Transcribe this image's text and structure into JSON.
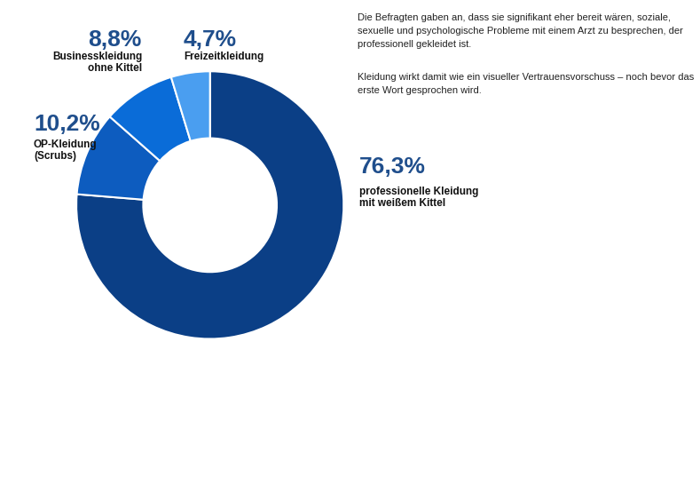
{
  "chart_data": {
    "type": "donut",
    "categories": [
      "professionelle Kleidung\nmit weißem Kittel",
      "OP-Kleidung\n(Scrubs)",
      "Businesskleidung\nohne Kittel",
      "Freizeitkleidung"
    ],
    "values": [
      76.3,
      10.2,
      8.8,
      4.7
    ],
    "value_labels": [
      "76,3%",
      "10,2%",
      "8,8%",
      "4,7%"
    ],
    "colors": [
      "#0b3f86",
      "#0d5cbf",
      "#0a6cd8",
      "#4a9ef0"
    ],
    "data_labels": true,
    "annotations": [
      "Die Befragten gaben an, dass sie signifikant eher bereit wären, soziale, sexuelle und psychologische Probleme mit einem Arzt zu besprechen, der professionell gekleidet ist.",
      "Kleidung wirkt damit wie ein visueller Vertrauensvorschuss – noch bevor das erste Wort gesprochen wird."
    ]
  }
}
